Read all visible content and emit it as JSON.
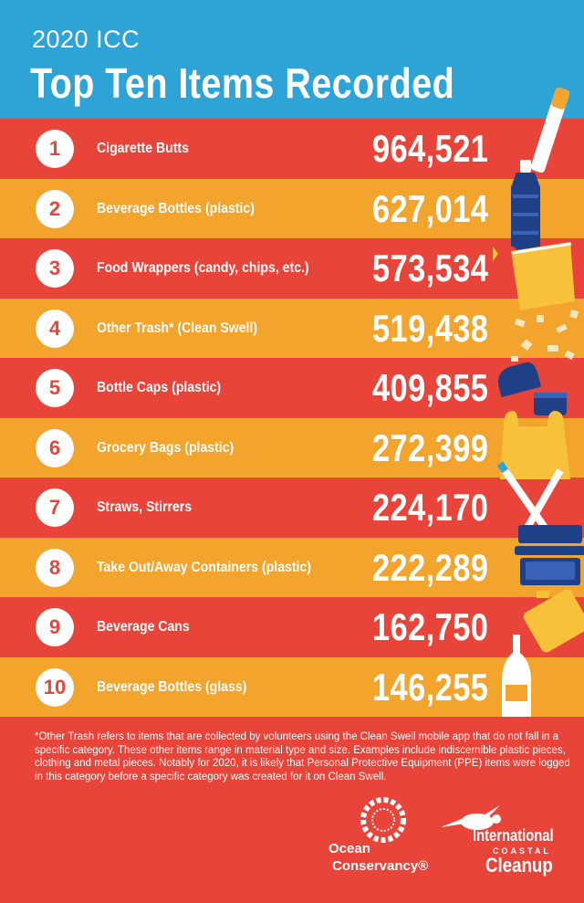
{
  "header": {
    "subtitle": "2020 ICC",
    "title": "Top Ten Items Recorded"
  },
  "items": [
    {
      "rank": "1",
      "label": "Cigarette Butts",
      "value": "964,521"
    },
    {
      "rank": "2",
      "label": "Beverage Bottles (plastic)",
      "value": "627,014"
    },
    {
      "rank": "3",
      "label": "Food Wrappers (candy, chips, etc.)",
      "value": "573,534"
    },
    {
      "rank": "4",
      "label": "Other Trash* (Clean Swell)",
      "value": "519,438"
    },
    {
      "rank": "5",
      "label": "Bottle Caps (plastic)",
      "value": "409,855"
    },
    {
      "rank": "6",
      "label": "Grocery Bags (plastic)",
      "value": "272,399"
    },
    {
      "rank": "7",
      "label": "Straws, Stirrers",
      "value": "224,170"
    },
    {
      "rank": "8",
      "label": "Take Out/Away Containers (plastic)",
      "value": "222,289"
    },
    {
      "rank": "9",
      "label": "Beverage Cans",
      "value": "162,750"
    },
    {
      "rank": "10",
      "label": "Beverage Bottles (glass)",
      "value": "146,255"
    }
  ],
  "footnote": "*Other Trash refers to items that are collected by volunteers using the Clean Swell mobile app that do not fall in a specific category. These other items range in material type and size. Examples include indiscernible plastic pieces, clothing and metal pieces. Notably for 2020, it is likely that Personal Protective Equipment (PPE) items were logged in this category before a specific category was created for it on Clean Swell.",
  "logos": {
    "ocean_conservancy_line1": "Ocean",
    "ocean_conservancy_line2": "Conservancy®",
    "icc_line1": "International",
    "icc_line2": "COASTAL",
    "icc_line3": "Cleanup"
  },
  "colors": {
    "header_blue": "#2ea3d6",
    "row_red": "#e8443a",
    "row_orange": "#f2a42c",
    "navy": "#1f3f86",
    "yellow": "#f7c23a"
  },
  "icons": [
    "cigarette-icon",
    "plastic-bottle-icon",
    "candy-wrapper-icon",
    "chip-bag-icon",
    "trash-pieces-icon",
    "bottle-cap-icon",
    "grocery-bag-icon",
    "straws-icon",
    "takeout-container-icon",
    "beverage-can-icon",
    "glass-bottle-icon",
    "ocean-conservancy-logo",
    "icc-turtle-logo"
  ]
}
